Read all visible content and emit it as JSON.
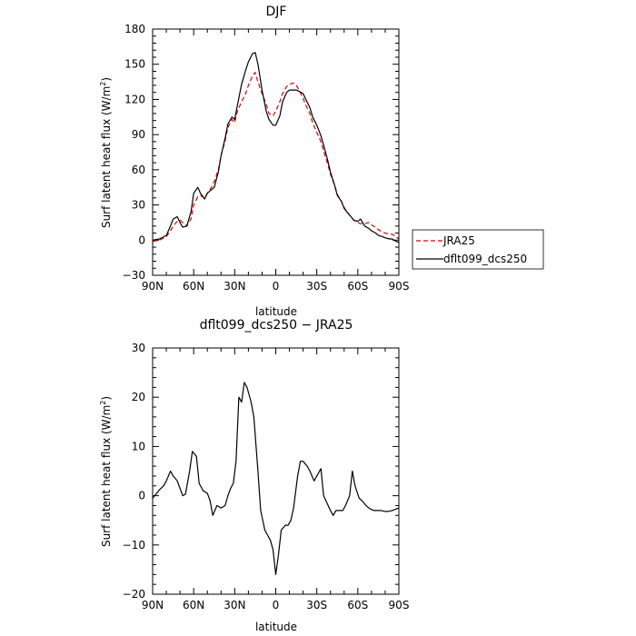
{
  "chart_data": [
    {
      "type": "line",
      "title": "DJF",
      "xlabel": "latitude",
      "ylabel": "Surf latent heat flux (W/m²)",
      "ylabel_parts": [
        "Surf latent heat flux (W/m",
        "2",
        ")"
      ],
      "xlim": [
        90,
        -90
      ],
      "ylim": [
        -30,
        180
      ],
      "x_ticks": [
        {
          "value": 90,
          "label": "90N"
        },
        {
          "value": 60,
          "label": "60N"
        },
        {
          "value": 30,
          "label": "30N"
        },
        {
          "value": 0,
          "label": "0"
        },
        {
          "value": -30,
          "label": "30S"
        },
        {
          "value": -60,
          "label": "60S"
        },
        {
          "value": -90,
          "label": "90S"
        }
      ],
      "y_ticks": [
        {
          "value": -30,
          "label": "−30"
        },
        {
          "value": 0,
          "label": "0"
        },
        {
          "value": 30,
          "label": "30"
        },
        {
          "value": 60,
          "label": "60"
        },
        {
          "value": 90,
          "label": "90"
        },
        {
          "value": 120,
          "label": "120"
        },
        {
          "value": 150,
          "label": "150"
        },
        {
          "value": 180,
          "label": "180"
        }
      ],
      "legend": {
        "placement": "right",
        "entries": [
          "JRA25",
          "dflt099_dcs250"
        ]
      },
      "series": [
        {
          "name": "JRA25",
          "color": "#dd0000",
          "dash": true,
          "x": [
            90,
            85,
            80,
            77,
            75,
            72,
            70,
            68,
            65,
            62,
            60,
            57,
            55,
            52,
            50,
            47,
            45,
            42,
            40,
            37,
            35,
            32,
            30,
            28,
            25,
            22,
            20,
            17,
            15,
            13,
            10,
            7,
            5,
            2,
            0,
            -3,
            -5,
            -8,
            -10,
            -13,
            -15,
            -17,
            -20,
            -22,
            -25,
            -27,
            -30,
            -33,
            -35,
            -38,
            -40,
            -43,
            -45,
            -48,
            -50,
            -52,
            -55,
            -57,
            -60,
            -62,
            -65,
            -68,
            -70,
            -73,
            -75,
            -78,
            -80,
            -83,
            -85,
            -88,
            -90
          ],
          "y": [
            -1,
            0,
            3,
            8,
            12,
            16,
            17,
            15,
            12,
            18,
            30,
            37,
            38,
            36,
            40,
            45,
            50,
            60,
            72,
            85,
            96,
            103,
            100,
            110,
            118,
            125,
            132,
            140,
            143,
            135,
            125,
            116,
            108,
            106,
            110,
            118,
            125,
            131,
            133,
            134,
            132,
            128,
            121,
            115,
            108,
            100,
            92,
            84,
            76,
            65,
            56,
            47,
            39,
            33,
            28,
            24,
            20,
            17,
            15,
            14,
            14,
            15,
            13,
            11,
            9,
            7,
            6,
            5,
            5,
            3,
            1
          ]
        },
        {
          "name": "dflt099_dcs250",
          "color": "#000000",
          "dash": false,
          "x": [
            90,
            85,
            80,
            77,
            75,
            72,
            70,
            68,
            65,
            62,
            60,
            57,
            55,
            52,
            50,
            47,
            45,
            42,
            40,
            37,
            35,
            32,
            30,
            28,
            25,
            22,
            20,
            17,
            15,
            13,
            10,
            7,
            5,
            2,
            0,
            -3,
            -5,
            -8,
            -10,
            -13,
            -15,
            -17,
            -20,
            -22,
            -25,
            -27,
            -30,
            -33,
            -35,
            -38,
            -40,
            -43,
            -45,
            -48,
            -50,
            -52,
            -55,
            -57,
            -60,
            -62,
            -65,
            -68,
            -70,
            -73,
            -75,
            -78,
            -80,
            -83,
            -85,
            -88,
            -90
          ],
          "y": [
            0,
            1,
            4,
            12,
            18,
            20,
            15,
            11,
            12,
            24,
            40,
            45,
            40,
            35,
            40,
            43,
            45,
            58,
            72,
            87,
            99,
            105,
            103,
            115,
            133,
            145,
            152,
            159,
            160,
            150,
            128,
            110,
            103,
            98,
            98,
            106,
            118,
            126,
            128,
            128,
            128,
            127,
            125,
            120,
            113,
            105,
            98,
            89,
            81,
            68,
            58,
            47,
            38,
            33,
            27,
            24,
            20,
            17,
            16,
            18,
            12,
            10,
            8,
            6,
            4,
            3,
            2,
            1,
            1,
            -1,
            -2
          ]
        }
      ]
    },
    {
      "type": "line",
      "title": "dflt099_dcs250 − JRA25",
      "xlabel": "latitude",
      "ylabel": "Surf latent heat flux (W/m²)",
      "ylabel_parts": [
        "Surf latent heat flux (W/m",
        "2",
        ")"
      ],
      "xlim": [
        90,
        -90
      ],
      "ylim": [
        -20,
        30
      ],
      "x_ticks": [
        {
          "value": 90,
          "label": "90N"
        },
        {
          "value": 60,
          "label": "60N"
        },
        {
          "value": 30,
          "label": "30N"
        },
        {
          "value": 0,
          "label": "0"
        },
        {
          "value": -30,
          "label": "30S"
        },
        {
          "value": -60,
          "label": "60S"
        },
        {
          "value": -90,
          "label": "90S"
        }
      ],
      "y_ticks": [
        {
          "value": -20,
          "label": "−20"
        },
        {
          "value": -10,
          "label": "−10"
        },
        {
          "value": 0,
          "label": "0"
        },
        {
          "value": 10,
          "label": "10"
        },
        {
          "value": 20,
          "label": "20"
        },
        {
          "value": 30,
          "label": "30"
        }
      ],
      "series": [
        {
          "name": "",
          "color": "#000000",
          "dash": false,
          "x": [
            90,
            87,
            85,
            82,
            80,
            77,
            75,
            72,
            70,
            68,
            66,
            63,
            61,
            58,
            56,
            53,
            50,
            48,
            46,
            43,
            40,
            37,
            35,
            33,
            31,
            29,
            27,
            25,
            23,
            21,
            18,
            16,
            13,
            11,
            8,
            6,
            4,
            2,
            0,
            -2,
            -4,
            -7,
            -9,
            -11,
            -13,
            -16,
            -18,
            -20,
            -23,
            -25,
            -28,
            -30,
            -33,
            -35,
            -38,
            -40,
            -42,
            -44,
            -47,
            -49,
            -51,
            -54,
            -56,
            -58,
            -61,
            -63,
            -66,
            -68,
            -70,
            -72,
            -75,
            -77,
            -80,
            -82,
            -85,
            -87,
            -90
          ],
          "y": [
            -0.5,
            0.5,
            1.2,
            2,
            3,
            5,
            4,
            3,
            1.5,
            0,
            0.3,
            5,
            9,
            8,
            2.5,
            1,
            0.5,
            -1,
            -4,
            -2,
            -2.5,
            -2,
            0,
            1.5,
            2.5,
            7,
            20,
            19,
            23,
            22,
            19,
            16,
            5,
            -3,
            -7,
            -8,
            -9,
            -11,
            -16,
            -12,
            -7,
            -6,
            -6,
            -5,
            -2.5,
            4,
            7,
            7,
            6,
            5,
            3,
            4,
            5.5,
            0,
            -1.8,
            -3,
            -4,
            -3,
            -3,
            -3,
            -2,
            0,
            5,
            2,
            -0.5,
            -1,
            -2,
            -2.5,
            -2.8,
            -3,
            -3,
            -3,
            -3.2,
            -3.2,
            -3,
            -2.8,
            -2.5
          ]
        }
      ]
    }
  ]
}
